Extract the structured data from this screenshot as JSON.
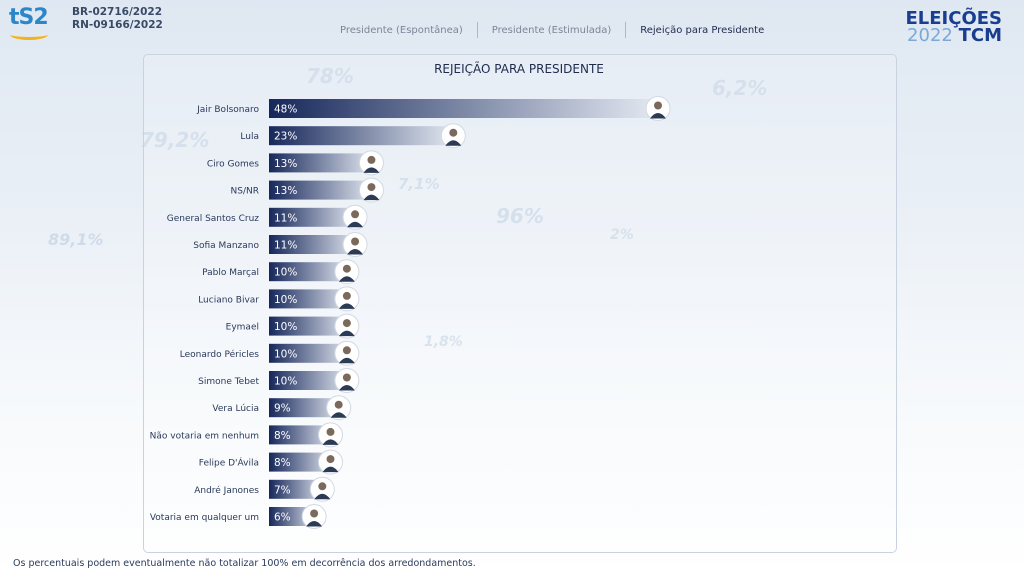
{
  "header": {
    "logo": "tS2",
    "registration": [
      "BR-02716/2022",
      "RN-09166/2022"
    ],
    "tabs": [
      {
        "label": "Presidente (Espontânea)",
        "active": false
      },
      {
        "label": "Presidente (Estimulada)",
        "active": false
      },
      {
        "label": "Rejeição para Presidente",
        "active": true
      }
    ],
    "brand_line1": "ELEIÇÕES",
    "brand_year": "2022",
    "brand_tcm": "TCM"
  },
  "background_numbers": [
    "78%",
    "79,2%",
    "89,1%",
    "6,2%",
    "96%",
    "7,1%",
    "1,8%",
    "2%"
  ],
  "chart_data": {
    "type": "bar",
    "orientation": "horizontal",
    "title": "REJEIÇÃO PARA PRESIDENTE",
    "categories": [
      "Jair Bolsonaro",
      "Lula",
      "Ciro Gomes",
      "NS/NR",
      "General Santos Cruz",
      "Sofia Manzano",
      "Pablo Marçal",
      "Luciano Bivar",
      "Eymael",
      "Leonardo Péricles",
      "Simone Tebet",
      "Vera Lúcia",
      "Não votaria em nenhum",
      "Felipe D'Ávila",
      "André Janones",
      "Votaria em qualquer um"
    ],
    "values": [
      48,
      23,
      13,
      13,
      11,
      11,
      10,
      10,
      10,
      10,
      10,
      9,
      8,
      8,
      7,
      6
    ],
    "value_labels": [
      "48%",
      "23%",
      "13%",
      "13%",
      "11%",
      "11%",
      "10%",
      "10%",
      "10%",
      "10%",
      "10%",
      "9%",
      "8%",
      "8%",
      "7%",
      "6%"
    ],
    "xlim": [
      0,
      48
    ],
    "colors": {
      "bar_start": "#16275a",
      "bar_end": "#e6ebf3",
      "label": "#2a3a5c",
      "value": "#ffffff"
    }
  },
  "footnote": "Os percentuais podem eventualmente não totalizar 100% em decorrência dos arredondamentos."
}
